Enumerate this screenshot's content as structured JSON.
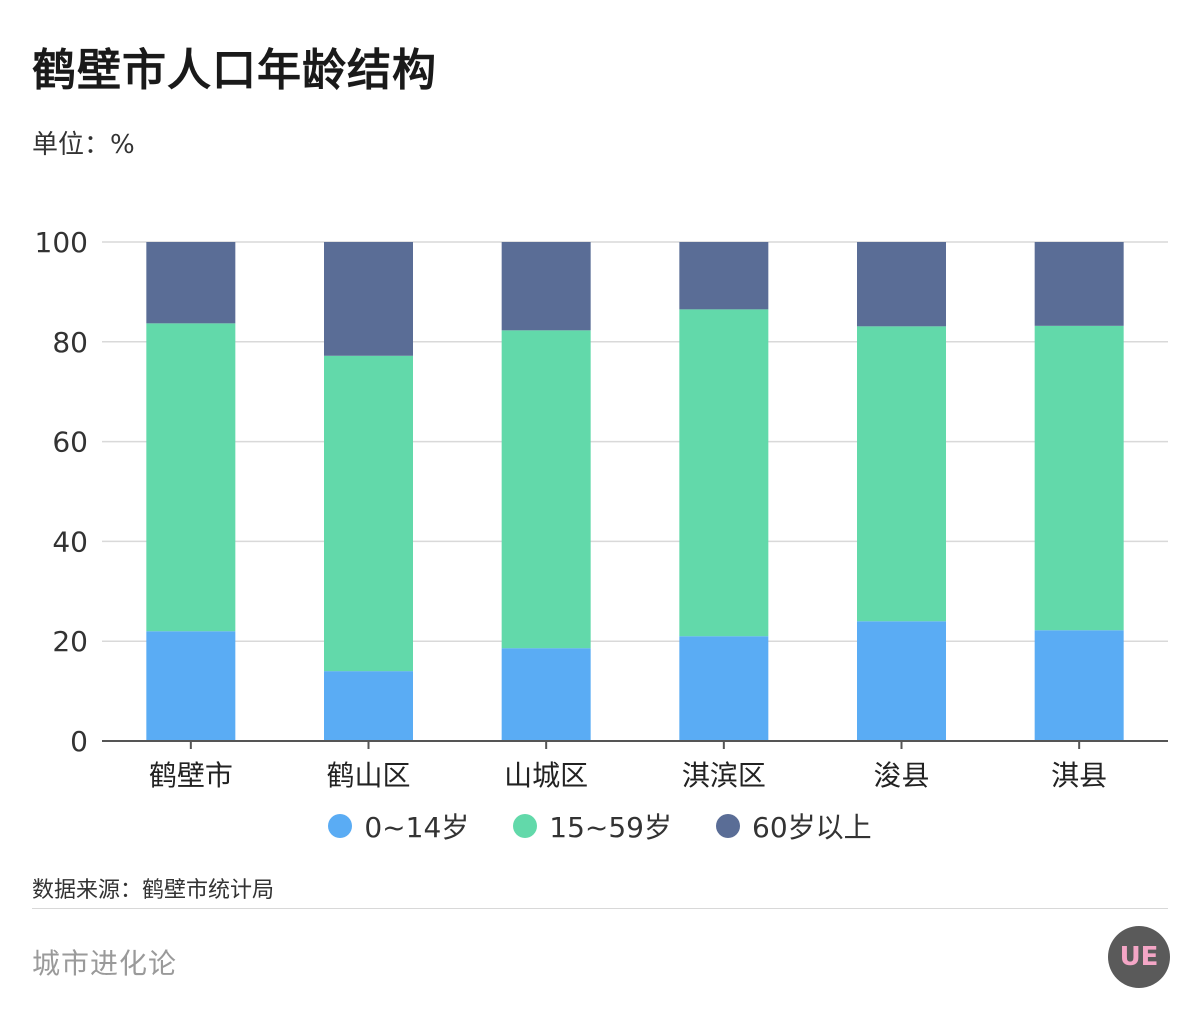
{
  "title": "鹤壁市人口年龄结构",
  "unit_label": "单位：%",
  "source_label": "数据来源：鹤壁市统计局",
  "brand_label": "城市进化论",
  "logo_text": "UE",
  "legend": [
    {
      "label": "0~14岁",
      "color": "#5aacf4"
    },
    {
      "label": "15~59岁",
      "color": "#62d9aa"
    },
    {
      "label": "60岁以上",
      "color": "#5a6d96"
    }
  ],
  "chart_data": {
    "type": "bar",
    "stacked": true,
    "categories": [
      "鹤壁市",
      "鹤山区",
      "山城区",
      "淇滨区",
      "浚县",
      "淇县"
    ],
    "series": [
      {
        "name": "0~14岁",
        "color": "#5aacf4",
        "values": [
          22.0,
          14.0,
          18.6,
          21.0,
          24.0,
          22.2
        ]
      },
      {
        "name": "15~59岁",
        "color": "#62d9aa",
        "values": [
          61.7,
          63.2,
          63.7,
          65.5,
          59.1,
          61.0
        ]
      },
      {
        "name": "60岁以上",
        "color": "#5a6d96",
        "values": [
          16.3,
          22.8,
          17.7,
          13.5,
          16.9,
          16.8
        ]
      }
    ],
    "ylim": [
      0,
      100
    ],
    "yticks": [
      0,
      20,
      40,
      60,
      80,
      100
    ],
    "grid": true,
    "legend_position": "bottom"
  }
}
